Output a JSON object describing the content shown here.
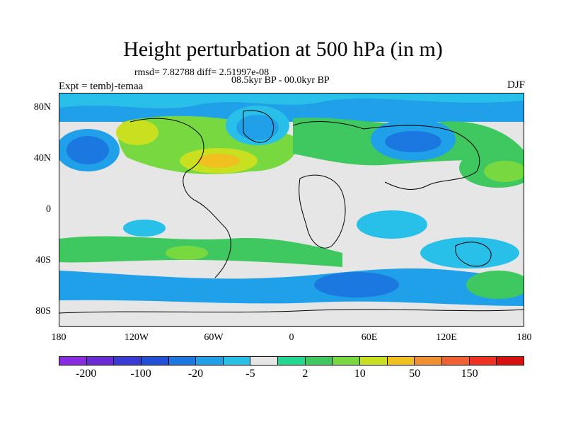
{
  "title": "Height perturbation at 500 hPa (in m)",
  "stats_line": "rmsd= 7.82788 diff= 2.51997e-08",
  "period_line": "08.5kyr BP - 00.0kyr BP",
  "left_label": "Expt = tembj-temaa",
  "right_label": "DJF",
  "y_ticks": [
    "80N",
    "40N",
    "0",
    "40S",
    "80S"
  ],
  "x_ticks": [
    "180",
    "120W",
    "60W",
    "0",
    "60E",
    "120E",
    "180"
  ],
  "colorbar": {
    "colors": [
      "#8a2be2",
      "#6a2bd6",
      "#3a3ad6",
      "#2050d8",
      "#1a78e0",
      "#20a0e8",
      "#28c0e8",
      "#e6e6e6",
      "#20d890",
      "#40c860",
      "#78d840",
      "#c8e020",
      "#f0c020",
      "#f09030",
      "#f06030",
      "#f03020",
      "#d81010"
    ],
    "labels": [
      "-200",
      "-100",
      "-20",
      "-5",
      "2",
      "10",
      "50",
      "150"
    ]
  }
}
